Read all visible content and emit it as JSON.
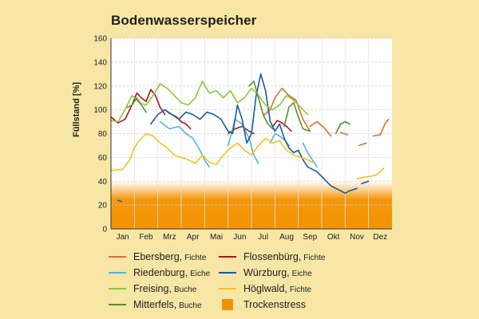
{
  "title": "Bodenwasserspeicher",
  "chart_data": {
    "type": "line",
    "ylabel": "Füllstand [%]",
    "xlabel": "",
    "ylim": [
      0,
      160
    ],
    "yticks": [
      0,
      20,
      40,
      60,
      80,
      100,
      120,
      140,
      160
    ],
    "xlim": [
      0,
      12
    ],
    "months": [
      "Jan",
      "Feb",
      "Mrz",
      "Apr",
      "Mai",
      "Jun",
      "Jul",
      "Aug",
      "Sep",
      "Okt",
      "Nov",
      "Dez"
    ],
    "grid": true,
    "legend_position": "bottom",
    "bands": [
      {
        "name": "Trockenstress",
        "label": "Trockenstress",
        "y0": 0,
        "y1": 40,
        "color": "#f39200"
      }
    ],
    "series": [
      {
        "name": "Ebersberg",
        "sub": "Fichte",
        "color": "#d8702e",
        "segments": [
          [
            [
              6.5,
              95
            ],
            [
              6.8,
              100
            ],
            [
              7.0,
              110
            ],
            [
              7.3,
              118
            ],
            [
              7.6,
              112
            ],
            [
              7.9,
              108
            ],
            [
              8.2,
              92
            ],
            [
              8.5,
              82
            ]
          ],
          [
            [
              8.5,
              86
            ],
            [
              8.8,
              90
            ],
            [
              9.1,
              85
            ],
            [
              9.4,
              78
            ]
          ],
          [
            [
              9.8,
              81
            ],
            [
              10.1,
              79
            ]
          ],
          [
            [
              10.6,
              70
            ],
            [
              10.9,
              72
            ]
          ],
          [
            [
              11.2,
              78
            ],
            [
              11.5,
              79
            ],
            [
              11.7,
              88
            ],
            [
              11.85,
              92
            ]
          ]
        ]
      },
      {
        "name": "Flossenbürg",
        "sub": "Fichte",
        "color": "#a8161b",
        "segments": [
          [
            [
              0.0,
              94
            ],
            [
              0.3,
              89
            ],
            [
              0.6,
              92
            ],
            [
              0.9,
              104
            ],
            [
              1.1,
              114
            ],
            [
              1.3,
              110
            ],
            [
              1.5,
              107
            ],
            [
              1.7,
              117
            ],
            [
              1.9,
              112
            ],
            [
              2.1,
              102
            ],
            [
              2.3,
              96
            ]
          ],
          [
            [
              2.3,
              100
            ],
            [
              2.5,
              97
            ],
            [
              2.8,
              94
            ],
            [
              3.0,
              90
            ],
            [
              3.2,
              88
            ],
            [
              3.4,
              84
            ]
          ],
          [
            [
              5.0,
              80
            ],
            [
              5.3,
              84
            ],
            [
              5.6,
              86
            ],
            [
              5.9,
              82
            ],
            [
              6.1,
              80
            ]
          ],
          [
            [
              6.9,
              86
            ],
            [
              7.1,
              91
            ],
            [
              7.3,
              89
            ],
            [
              7.5,
              86
            ],
            [
              7.7,
              82
            ]
          ]
        ]
      },
      {
        "name": "Riedenburg",
        "sub": "Eiche",
        "color": "#4fb3e3",
        "segments": [
          [
            [
              2.1,
              90
            ],
            [
              2.5,
              84
            ],
            [
              2.9,
              86
            ],
            [
              3.2,
              80
            ],
            [
              3.5,
              76
            ],
            [
              3.8,
              66
            ],
            [
              4.0,
              58
            ],
            [
              4.2,
              52
            ]
          ],
          [
            [
              5.0,
              70
            ],
            [
              5.3,
              92
            ],
            [
              5.6,
              88
            ],
            [
              5.9,
              76
            ],
            [
              6.1,
              62
            ],
            [
              6.3,
              55
            ]
          ],
          [
            [
              6.8,
              72
            ],
            [
              7.0,
              80
            ],
            [
              7.2,
              78
            ],
            [
              7.4,
              75
            ],
            [
              7.6,
              70
            ]
          ],
          [
            [
              8.2,
              72
            ],
            [
              8.4,
              64
            ],
            [
              8.6,
              58
            ],
            [
              8.8,
              52
            ]
          ]
        ]
      },
      {
        "name": "Würzburg",
        "sub": "Eiche",
        "color": "#1a5aa0",
        "segments": [
          [
            [
              0.3,
              24
            ],
            [
              0.45,
              23
            ]
          ],
          [
            [
              1.7,
              88
            ],
            [
              2.0,
              96
            ],
            [
              2.3,
              100
            ],
            [
              2.6,
              96
            ],
            [
              2.9,
              92
            ],
            [
              3.2,
              98
            ],
            [
              3.5,
              96
            ],
            [
              3.8,
              92
            ],
            [
              4.1,
              98
            ],
            [
              4.4,
              96
            ],
            [
              4.7,
              92
            ],
            [
              5.0,
              82
            ],
            [
              5.2,
              80
            ],
            [
              5.4,
              104
            ],
            [
              5.6,
              92
            ],
            [
              5.8,
              72
            ],
            [
              6.0,
              80
            ],
            [
              6.2,
              112
            ],
            [
              6.4,
              130
            ],
            [
              6.6,
              116
            ],
            [
              6.8,
              90
            ],
            [
              7.0,
              82
            ],
            [
              7.2,
              88
            ],
            [
              7.4,
              76
            ],
            [
              7.6,
              68
            ],
            [
              7.8,
              64
            ],
            [
              8.0,
              66
            ],
            [
              8.2,
              58
            ],
            [
              8.4,
              52
            ],
            [
              8.6,
              50
            ],
            [
              8.8,
              48
            ],
            [
              9.0,
              44
            ],
            [
              9.2,
              40
            ],
            [
              9.4,
              36
            ],
            [
              9.6,
              34
            ],
            [
              9.8,
              32
            ],
            [
              10.0,
              30
            ],
            [
              10.2,
              32
            ],
            [
              10.5,
              34
            ]
          ],
          [
            [
              10.7,
              38
            ],
            [
              11.0,
              40
            ]
          ]
        ]
      },
      {
        "name": "Freising",
        "sub": "Buche",
        "color": "#8cc63f",
        "segments": [
          [
            [
              0.0,
              91
            ],
            [
              0.3,
              90
            ],
            [
              0.6,
              100
            ],
            [
              0.9,
              112
            ],
            [
              1.2,
              106
            ],
            [
              1.5,
              104
            ],
            [
              1.8,
              112
            ],
            [
              2.1,
              122
            ],
            [
              2.4,
              118
            ],
            [
              2.7,
              112
            ],
            [
              3.0,
              106
            ],
            [
              3.3,
              104
            ],
            [
              3.6,
              110
            ],
            [
              3.9,
              124
            ],
            [
              4.2,
              114
            ],
            [
              4.5,
              116
            ],
            [
              4.8,
              110
            ],
            [
              5.1,
              116
            ],
            [
              5.4,
              106
            ],
            [
              5.7,
              110
            ],
            [
              6.0,
              118
            ],
            [
              6.3,
              112
            ],
            [
              6.6,
              104
            ],
            [
              6.9,
              100
            ],
            [
              7.2,
              104
            ],
            [
              7.5,
              112
            ],
            [
              7.8,
              108
            ],
            [
              8.1,
              102
            ],
            [
              8.4,
              96
            ]
          ]
        ]
      },
      {
        "name": "Höglwald",
        "sub": "Fichte",
        "color": "#f5c021",
        "segments": [
          [
            [
              0.0,
              49
            ],
            [
              0.5,
              50
            ],
            [
              0.8,
              58
            ],
            [
              1.0,
              68
            ],
            [
              1.2,
              74
            ],
            [
              1.5,
              80
            ],
            [
              1.8,
              78
            ],
            [
              2.1,
              72
            ],
            [
              2.4,
              68
            ],
            [
              2.7,
              62
            ],
            [
              3.0,
              60
            ],
            [
              3.3,
              58
            ],
            [
              3.6,
              55
            ],
            [
              3.9,
              62
            ],
            [
              4.2,
              56
            ],
            [
              4.5,
              54
            ],
            [
              4.8,
              62
            ],
            [
              5.1,
              68
            ],
            [
              5.4,
              72
            ],
            [
              5.7,
              66
            ],
            [
              6.0,
              62
            ],
            [
              6.3,
              70
            ],
            [
              6.6,
              76
            ],
            [
              6.9,
              72
            ],
            [
              7.2,
              74
            ],
            [
              7.5,
              66
            ],
            [
              7.8,
              62
            ],
            [
              8.1,
              60
            ],
            [
              8.4,
              58
            ],
            [
              8.6,
              56
            ]
          ],
          [
            [
              10.5,
              42
            ],
            [
              10.7,
              43
            ],
            [
              11.0,
              44
            ],
            [
              11.3,
              45
            ],
            [
              11.5,
              48
            ],
            [
              11.65,
              51
            ]
          ]
        ]
      },
      {
        "name": "Mitterfels",
        "sub": "Buche",
        "color": "#5e8e2e",
        "segments": [
          [
            [
              0.7,
              102
            ],
            [
              0.9,
              104
            ],
            [
              1.1,
              110
            ],
            [
              1.3,
              104
            ],
            [
              1.5,
              98
            ]
          ],
          [
            [
              5.9,
              120
            ],
            [
              6.1,
              124
            ],
            [
              6.3,
              110
            ],
            [
              6.5,
              96
            ],
            [
              6.7,
              88
            ],
            [
              6.9,
              84
            ]
          ],
          [
            [
              7.4,
              86
            ],
            [
              7.6,
              102
            ],
            [
              7.8,
              106
            ],
            [
              8.0,
              94
            ],
            [
              8.2,
              84
            ],
            [
              8.5,
              82
            ]
          ],
          [
            [
              9.6,
              80
            ],
            [
              9.8,
              88
            ],
            [
              10.0,
              90
            ],
            [
              10.2,
              88
            ]
          ]
        ]
      }
    ]
  },
  "legend": {
    "left": [
      {
        "name": "Ebersberg",
        "sub": "Fichte",
        "color": "#d8702e"
      },
      {
        "name": "Riedenburg",
        "sub": "Eiche",
        "color": "#4fb3e3"
      },
      {
        "name": "Freising",
        "sub": "Buche",
        "color": "#8cc63f"
      },
      {
        "name": "Mitterfels",
        "sub": "Buche",
        "color": "#5e8e2e"
      }
    ],
    "right": [
      {
        "name": "Flossenbürg",
        "sub": "Fichte",
        "color": "#a8161b"
      },
      {
        "name": "Würzburg",
        "sub": "Eiche",
        "color": "#1a5aa0"
      },
      {
        "name": "Höglwald",
        "sub": "Fichte",
        "color": "#f5c021"
      },
      {
        "name": "Trockenstress",
        "sub": "",
        "color": "#f39200",
        "box": true
      }
    ]
  }
}
